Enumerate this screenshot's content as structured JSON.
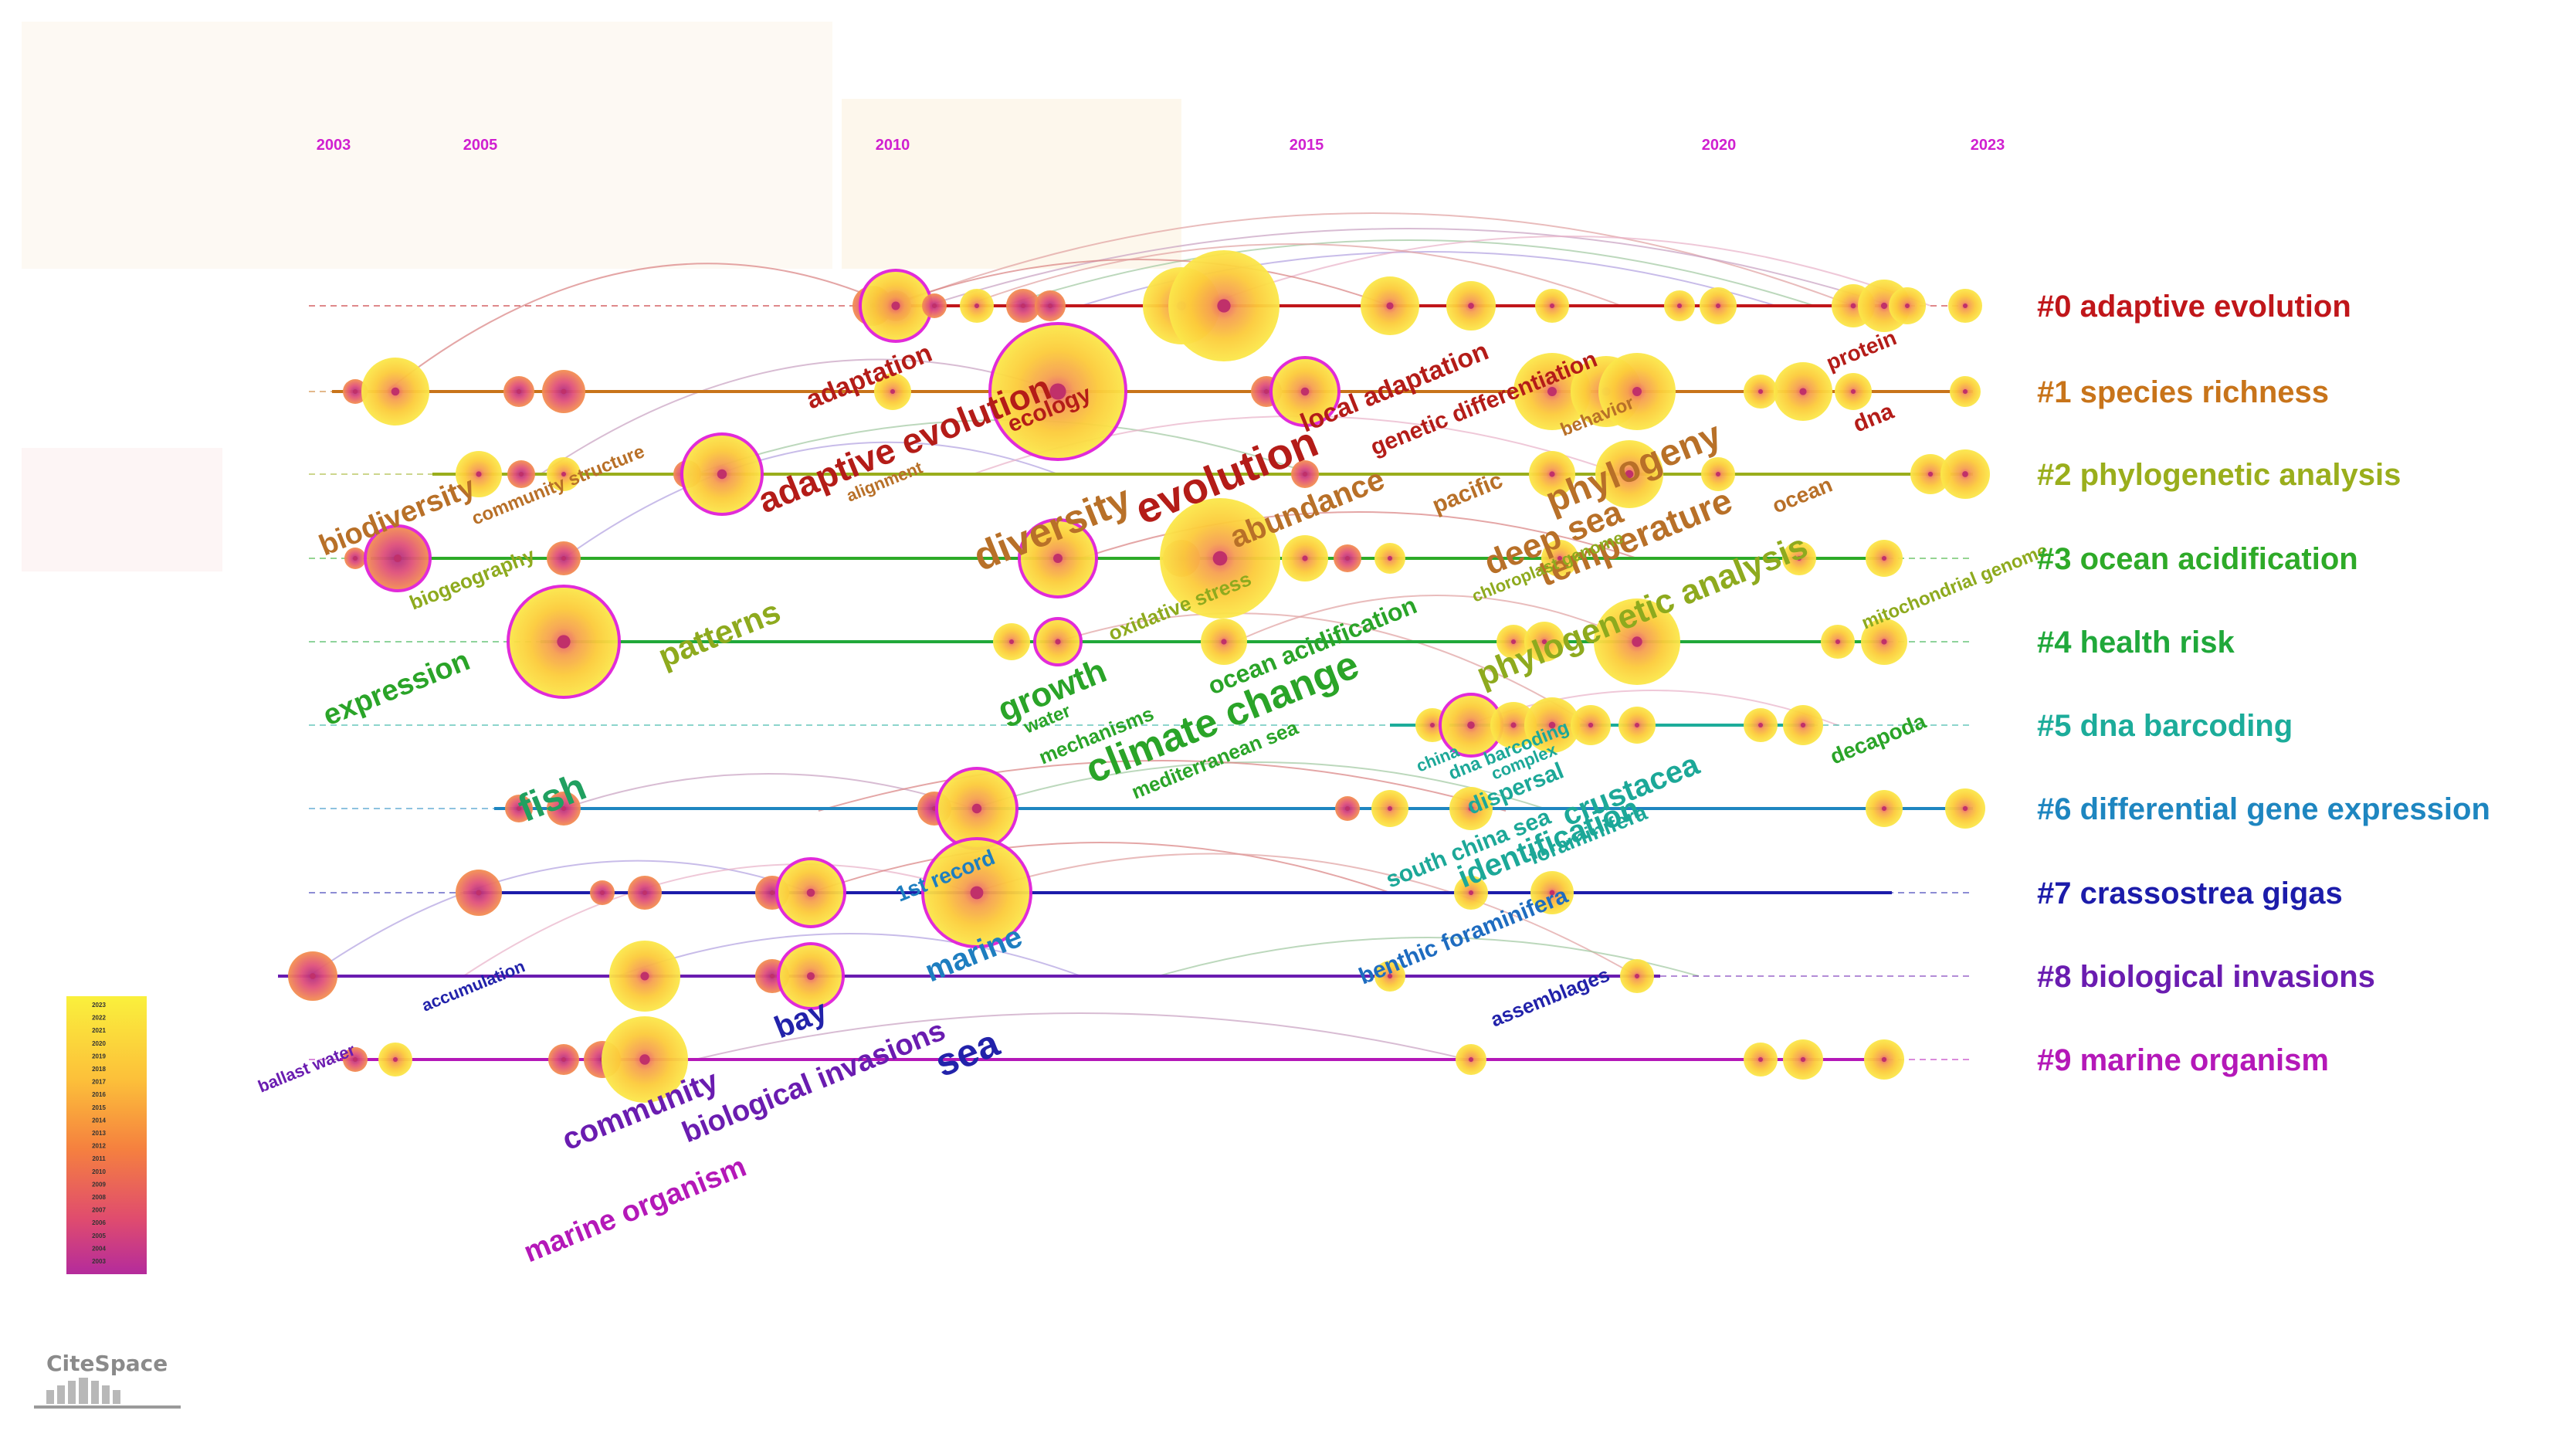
{
  "app": "CiteSpace",
  "timeline": {
    "years": [
      "2003",
      "2005",
      "2010",
      "2015",
      "2020",
      "2023"
    ],
    "legend_years": [
      "2023",
      "2022",
      "2021",
      "2020",
      "2019",
      "2018",
      "2017",
      "2016",
      "2015",
      "2014",
      "2013",
      "2012",
      "2011",
      "2010",
      "2009",
      "2008",
      "2007",
      "2006",
      "2005",
      "2004",
      "2003"
    ]
  },
  "clusters": [
    {
      "label": "#0 adaptive evolution",
      "color": "#c0161a"
    },
    {
      "label": "#1 species richness",
      "color": "#c8741a"
    },
    {
      "label": "#2 phylogenetic analysis",
      "color": "#9aae1c"
    },
    {
      "label": "#3 ocean acidification",
      "color": "#2eaa28"
    },
    {
      "label": "#4 health risk",
      "color": "#20a83a"
    },
    {
      "label": "#5 dna barcoding",
      "color": "#1cac9a"
    },
    {
      "label": "#6 differential gene expression",
      "color": "#1e86c0"
    },
    {
      "label": "#7 crassostrea gigas",
      "color": "#1c1caa"
    },
    {
      "label": "#8 biological invasions",
      "color": "#6a1cb0"
    },
    {
      "label": "#9 marine organism",
      "color": "#b418b8"
    }
  ],
  "keywords": [
    {
      "text": "adaptation",
      "color": "#b41c18"
    },
    {
      "text": "adaptive evolution",
      "color": "#b41c18"
    },
    {
      "text": "ecology",
      "color": "#b41c18"
    },
    {
      "text": "evolution",
      "color": "#b41c18"
    },
    {
      "text": "local adaptation",
      "color": "#b41c18"
    },
    {
      "text": "genetic differentiation",
      "color": "#b41c18"
    },
    {
      "text": "protein",
      "color": "#b41c18"
    },
    {
      "text": "dna",
      "color": "#b41c18"
    },
    {
      "text": "biodiversity",
      "color": "#b87028"
    },
    {
      "text": "community structure",
      "color": "#b87028"
    },
    {
      "text": "alignment",
      "color": "#b87028"
    },
    {
      "text": "diversity",
      "color": "#b87028"
    },
    {
      "text": "abundance",
      "color": "#b87028"
    },
    {
      "text": "pacific",
      "color": "#b87028"
    },
    {
      "text": "behavior",
      "color": "#b87028"
    },
    {
      "text": "phylogeny",
      "color": "#b87028"
    },
    {
      "text": "deep sea",
      "color": "#b87028"
    },
    {
      "text": "temperature",
      "color": "#b87028"
    },
    {
      "text": "ocean",
      "color": "#b87028"
    },
    {
      "text": "biogeography",
      "color": "#8eaa1e"
    },
    {
      "text": "patterns",
      "color": "#8eaa1e"
    },
    {
      "text": "oxidative stress",
      "color": "#8eaa1e"
    },
    {
      "text": "chloroplast genome",
      "color": "#8eaa1e"
    },
    {
      "text": "phylogenetic analysis",
      "color": "#8eaa1e"
    },
    {
      "text": "mitochondrial genome",
      "color": "#8eaa1e"
    },
    {
      "text": "expression",
      "color": "#2aa428"
    },
    {
      "text": "growth",
      "color": "#2aa428"
    },
    {
      "text": "water",
      "color": "#2aa428"
    },
    {
      "text": "mechanisms",
      "color": "#2aa428"
    },
    {
      "text": "climate change",
      "color": "#2aa428"
    },
    {
      "text": "ocean acidification",
      "color": "#2aa428"
    },
    {
      "text": "mediterranean sea",
      "color": "#2aa428"
    },
    {
      "text": "decapoda",
      "color": "#2aa428"
    },
    {
      "text": "fish",
      "color": "#20a060"
    },
    {
      "text": "china",
      "color": "#1ca898"
    },
    {
      "text": "dna barcoding",
      "color": "#1ca898"
    },
    {
      "text": "complex",
      "color": "#1ca898"
    },
    {
      "text": "dispersal",
      "color": "#1ca898"
    },
    {
      "text": "crustacea",
      "color": "#1ca898"
    },
    {
      "text": "south china sea",
      "color": "#1ca898"
    },
    {
      "text": "identification",
      "color": "#1ca898"
    },
    {
      "text": "foraminifera",
      "color": "#1ca898"
    },
    {
      "text": "1st record",
      "color": "#1e7ec0"
    },
    {
      "text": "marine",
      "color": "#1e7ec0"
    },
    {
      "text": "benthic foraminifera",
      "color": "#1e6cc0"
    },
    {
      "text": "bay",
      "color": "#2222aa"
    },
    {
      "text": "sea",
      "color": "#2222aa"
    },
    {
      "text": "accumulation",
      "color": "#2222aa"
    },
    {
      "text": "assemblages",
      "color": "#2222aa"
    },
    {
      "text": "ballast water",
      "color": "#6a1cb0"
    },
    {
      "text": "community",
      "color": "#6a1cb0"
    },
    {
      "text": "biological invasions",
      "color": "#6a1cb0"
    },
    {
      "text": "marine organism",
      "color": "#b418b8"
    }
  ]
}
